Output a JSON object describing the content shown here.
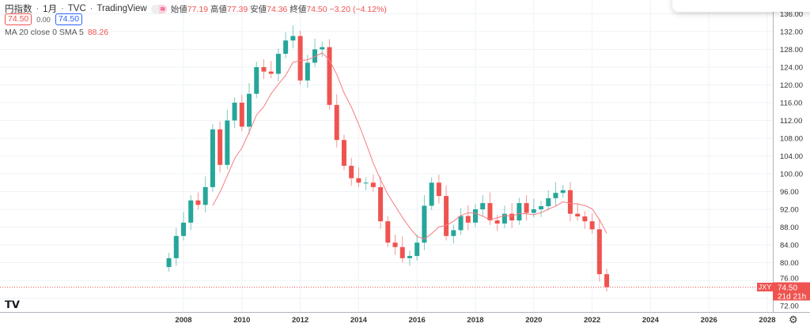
{
  "header": {
    "symbol_name": "円指数",
    "interval": "1月",
    "exchange": "TVC",
    "source": "TradingView",
    "open_label": "始値",
    "open": "77.19",
    "high_label": "高値",
    "high": "77.39",
    "low_label": "安値",
    "low": "74.36",
    "close_label": "終値",
    "close": "74.50",
    "change": "−3.20 (−4.12%)",
    "bid": "74.50",
    "spread": "0.00",
    "ask": "74.50"
  },
  "indicator": {
    "label": "MA 20 close 0 SMA 5",
    "value": "88.26"
  },
  "price_badge": {
    "symbol": "JXY",
    "price": "74.50",
    "countdown": "21d 21h"
  },
  "colors": {
    "up": "#26a69a",
    "down": "#ef5350",
    "ma": "#f77c80",
    "grid": "#eef3f7"
  },
  "chart_data": {
    "type": "candlestick",
    "title": "円指数 · 1月 · TVC",
    "xlabel": "",
    "ylabel": "",
    "ylim": [
      70,
      137
    ],
    "xlim": [
      2002.1,
      2028.2
    ],
    "y_ticks": [
      "72.00",
      "76.00",
      "80.00",
      "84.00",
      "88.00",
      "92.00",
      "96.00",
      "100.00",
      "104.00",
      "108.00",
      "112.00",
      "116.00",
      "120.00",
      "124.00",
      "128.00",
      "132.00",
      "136.00"
    ],
    "x_ticks": [
      "2008",
      "2010",
      "2012",
      "2014",
      "2016",
      "2018",
      "2020",
      "2022",
      "2024",
      "2026",
      "2028"
    ],
    "grid": true,
    "period_note": "quarterly approximation of monthly candles",
    "x": [
      2007.5,
      2007.75,
      2008.0,
      2008.25,
      2008.5,
      2008.75,
      2009.0,
      2009.25,
      2009.5,
      2009.75,
      2010.0,
      2010.25,
      2010.5,
      2010.75,
      2011.0,
      2011.25,
      2011.5,
      2011.75,
      2012.0,
      2012.25,
      2012.5,
      2012.75,
      2013.0,
      2013.25,
      2013.5,
      2013.75,
      2014.0,
      2014.25,
      2014.5,
      2014.75,
      2015.0,
      2015.25,
      2015.5,
      2015.75,
      2016.0,
      2016.25,
      2016.5,
      2016.75,
      2017.0,
      2017.25,
      2017.5,
      2017.75,
      2018.0,
      2018.25,
      2018.5,
      2018.75,
      2019.0,
      2019.25,
      2019.5,
      2019.75,
      2020.0,
      2020.25,
      2020.5,
      2020.75,
      2021.0,
      2021.25,
      2021.5,
      2021.75,
      2022.0,
      2022.25,
      2022.5
    ],
    "close": [
      81,
      86,
      89,
      94,
      93,
      97,
      110,
      102,
      112,
      116,
      110.6,
      118,
      124,
      123,
      122.5,
      127,
      130,
      131,
      121,
      125,
      128,
      128.5,
      115.5,
      107.6,
      101.8,
      99,
      98,
      98,
      97,
      89.3,
      84.5,
      83.5,
      81,
      81.5,
      84.5,
      92.8,
      98,
      95,
      86,
      87.3,
      90.5,
      89,
      92,
      93.4,
      89.5,
      88.8,
      91,
      89.5,
      93.4,
      91.2,
      92,
      92.7,
      94.5,
      95.7,
      96.3,
      91,
      90.4,
      89.3,
      87.5,
      77.4,
      74.5
    ],
    "ma_series": {
      "name": "MA 20 close 0 SMA 5",
      "last": 88.26
    },
    "last_price": 74.5
  }
}
